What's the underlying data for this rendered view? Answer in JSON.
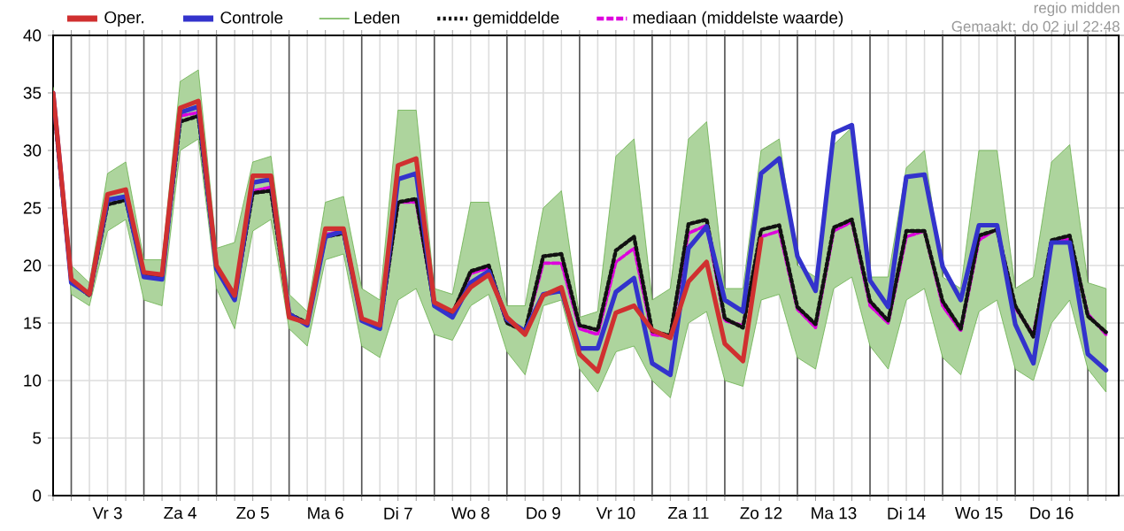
{
  "chart_data": {
    "type": "line",
    "annotations": [
      "regio midden",
      "Gemaakt: do 02 jul 22:48"
    ],
    "categories": [
      null,
      null,
      null,
      "Vr 3",
      null,
      null,
      null,
      "Za 4",
      null,
      null,
      null,
      "Zo 5",
      null,
      null,
      null,
      "Ma 6",
      null,
      null,
      null,
      "Di 7",
      null,
      null,
      null,
      "Wo 8",
      null,
      null,
      null,
      "Do 9",
      null,
      null,
      null,
      "Vr 10",
      null,
      null,
      null,
      "Za 11",
      null,
      null,
      null,
      "Zo 12",
      null,
      null,
      null,
      "Ma 13",
      null,
      null,
      null,
      "Di 14",
      null,
      null,
      null,
      "Wo 15",
      null,
      null,
      null,
      "Do 16",
      null,
      null,
      null
    ],
    "ylim": [
      0,
      40
    ],
    "yticks": [
      0,
      5,
      10,
      15,
      20,
      25,
      30,
      35,
      40
    ],
    "grid": true,
    "legend": "top left",
    "marker": "none",
    "series": [
      {
        "name": "Oper.",
        "color": "#d03030",
        "line_style": "solid",
        "values": [
          35,
          18.8,
          17.5,
          26.2,
          26.6,
          19.4,
          19.2,
          33.7,
          34.3,
          20,
          17.4,
          27.8,
          27.8,
          15.5,
          15.0,
          23.2,
          23.2,
          15.4,
          14.8,
          28.7,
          29.3,
          16.8,
          16,
          18.1,
          19.2,
          15.5,
          14,
          17.4,
          18.1,
          12.3,
          10.8,
          15.9,
          16.5,
          14.4,
          13.7,
          18.6,
          20.3,
          13.2,
          11.7,
          22.3,
          null,
          null,
          null,
          null,
          null,
          null,
          null,
          null,
          null,
          null,
          null,
          null,
          null,
          null,
          null,
          null,
          null,
          null,
          null
        ]
      },
      {
        "name": "Controle",
        "color": "#3333cc",
        "line_style": "solid",
        "values": [
          35,
          18.5,
          17.5,
          25.7,
          26,
          19,
          18.8,
          33.3,
          33.8,
          19.7,
          17,
          27.2,
          27.5,
          15.8,
          14.8,
          22.5,
          23,
          15.2,
          14.5,
          27.5,
          28,
          16.5,
          15.5,
          18.5,
          19.5,
          15.3,
          14.3,
          17.5,
          17.8,
          12.8,
          12.8,
          17.7,
          18.9,
          11.5,
          10.5,
          21.5,
          23.4,
          17,
          16,
          28,
          29.3,
          20.8,
          17.8,
          31.5,
          32.2,
          18.7,
          16.4,
          27.7,
          27.9,
          19.9,
          17,
          23.5,
          23.5,
          14.9,
          11.5,
          22,
          22,
          12.3,
          10.9
        ]
      },
      {
        "name": "Leden",
        "color": "#6ab04c",
        "line_style": "solid",
        "values": [
          null,
          null,
          null,
          null,
          null,
          null,
          null,
          null,
          null,
          null,
          null,
          null,
          null,
          null,
          null,
          null,
          null,
          null,
          null,
          null,
          null,
          null,
          null,
          null,
          null,
          null,
          null,
          null,
          null,
          null,
          null,
          null,
          null,
          null,
          null,
          null,
          null,
          null,
          null,
          null,
          null,
          null,
          null,
          null,
          null,
          null,
          null,
          null,
          null,
          null,
          null,
          null,
          null,
          null,
          null,
          null,
          null,
          null,
          null
        ],
        "lower": [
          34,
          17.5,
          16.5,
          23,
          24,
          17,
          16.5,
          30,
          31,
          18,
          14.5,
          23,
          24,
          14.5,
          13,
          20.5,
          21,
          13,
          12,
          17,
          18,
          14,
          13.5,
          16.5,
          17.5,
          12.5,
          10.5,
          16.5,
          17,
          11,
          9,
          12.5,
          13,
          10,
          8.5,
          15,
          16,
          10,
          9.5,
          17,
          17.5,
          12,
          11,
          18,
          19,
          13,
          11,
          17,
          18,
          12,
          10.5,
          16,
          17,
          11,
          10,
          15,
          17,
          11,
          9
        ],
        "upper": [
          35.5,
          20,
          18.5,
          28,
          29,
          20.5,
          20.5,
          36,
          37,
          21.5,
          22,
          29,
          29.5,
          17.5,
          16,
          25.5,
          26,
          18,
          17,
          33.5,
          33.5,
          18,
          17.5,
          25.5,
          25.5,
          16.5,
          16.5,
          25,
          26.5,
          15.5,
          16,
          29.5,
          31,
          17,
          18,
          31,
          32.5,
          18,
          18,
          30,
          31,
          20,
          19,
          30.5,
          32,
          19,
          19,
          28.5,
          30,
          19,
          18,
          30,
          30,
          18,
          19,
          29,
          30.5,
          18.5,
          18
        ]
      },
      {
        "name": "gemiddelde",
        "color": "#111111",
        "line_style": "dotted",
        "values": [
          34.5,
          18.6,
          17.4,
          25.3,
          25.7,
          19.2,
          19,
          32.5,
          33,
          19.8,
          17.2,
          26.3,
          26.5,
          15.8,
          15,
          22.5,
          22.8,
          15.3,
          14.7,
          25.5,
          25.8,
          16.5,
          15.8,
          19.5,
          20,
          15,
          14.3,
          20.8,
          21,
          14.8,
          14.4,
          21.3,
          22.5,
          14.3,
          13.9,
          23.6,
          24,
          15.4,
          14.6,
          23.1,
          23.5,
          16.4,
          14.9,
          23.3,
          24,
          16.9,
          15.2,
          23,
          23,
          16.9,
          14.5,
          22.6,
          23.1,
          16.5,
          13.8,
          22.2,
          22.6,
          15.6,
          14.2
        ]
      },
      {
        "name": "mediaan (middelste waarde)",
        "color": "#dd00dd",
        "line_style": "dashed",
        "values": [
          null,
          null,
          null,
          null,
          null,
          null,
          null,
          33,
          33.3,
          19.8,
          17.2,
          26.5,
          26.8,
          15.8,
          15,
          22.7,
          23,
          15.3,
          14.7,
          25.5,
          25.5,
          16.5,
          15.8,
          19.3,
          19.8,
          15,
          14.3,
          20.2,
          20.2,
          14.5,
          14,
          20.3,
          21.5,
          14,
          13.8,
          22.8,
          23.5,
          15.2,
          14.8,
          22.5,
          23,
          16.2,
          14.6,
          23,
          23.8,
          16.5,
          15,
          22.5,
          23,
          16.5,
          14.3,
          22.2,
          23.2,
          16.3,
          14,
          22,
          22.3,
          15.8,
          14
        ]
      }
    ]
  }
}
